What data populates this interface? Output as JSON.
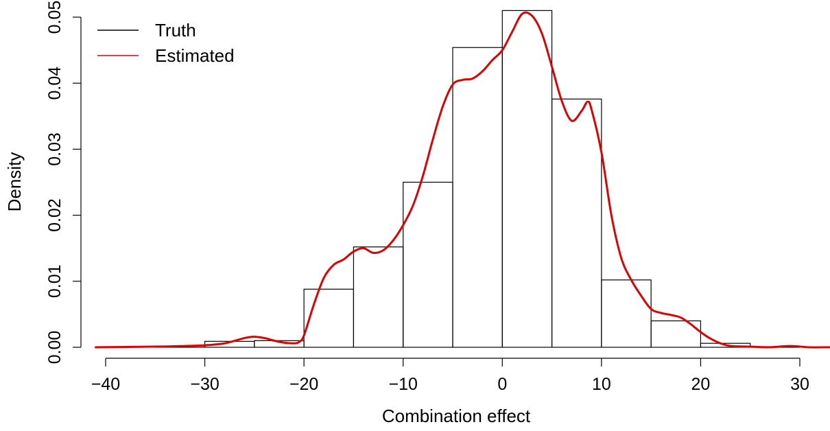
{
  "chart_data": {
    "type": "histogram",
    "title": "",
    "xlabel": "Combination effect",
    "ylabel": "Density",
    "xlim": [
      -41,
      33
    ],
    "ylim": [
      0,
      0.05
    ],
    "x_ticks": [
      -40,
      -30,
      -20,
      -10,
      0,
      10,
      20,
      30
    ],
    "x_tick_labels": [
      "−40",
      "−30",
      "−20",
      "−10",
      "0",
      "10",
      "20",
      "30"
    ],
    "y_ticks": [
      0,
      0.01,
      0.02,
      0.03,
      0.04,
      0.05
    ],
    "y_tick_labels": [
      "0.00",
      "0.01",
      "0.02",
      "0.03",
      "0.04",
      "0.05"
    ],
    "grid": false,
    "legend": {
      "placement": "top-left",
      "entries": [
        {
          "label": "Truth",
          "color": "#000000"
        },
        {
          "label": "Estimated",
          "color": "#e00000"
        }
      ]
    },
    "histogram": {
      "name": "Truth",
      "color": "#000000",
      "bins": [
        {
          "x0": -35,
          "x1": -30,
          "density": 0.0002
        },
        {
          "x0": -30,
          "x1": -25,
          "density": 0.0009
        },
        {
          "x0": -25,
          "x1": -20,
          "density": 0.001
        },
        {
          "x0": -20,
          "x1": -15,
          "density": 0.0088
        },
        {
          "x0": -15,
          "x1": -10,
          "density": 0.0152
        },
        {
          "x0": -10,
          "x1": -5,
          "density": 0.025
        },
        {
          "x0": -5,
          "x1": 0,
          "density": 0.0454
        },
        {
          "x0": 0,
          "x1": 5,
          "density": 0.051
        },
        {
          "x0": 5,
          "x1": 10,
          "density": 0.0376
        },
        {
          "x0": 10,
          "x1": 15,
          "density": 0.0102
        },
        {
          "x0": 15,
          "x1": 20,
          "density": 0.004
        },
        {
          "x0": 20,
          "x1": 25,
          "density": 0.0006
        },
        {
          "x0": 25,
          "x1": 30,
          "density": 0.0001
        }
      ]
    },
    "density_curve": {
      "name": "Estimated",
      "color": "#e00000",
      "x": [
        -41,
        -35,
        -32,
        -30,
        -28,
        -26,
        -25,
        -24,
        -23,
        -22,
        -21,
        -20.5,
        -20,
        -19,
        -18,
        -17,
        -16,
        -15,
        -14,
        -13,
        -12,
        -11,
        -10,
        -9,
        -8,
        -7,
        -6,
        -5,
        -4,
        -3,
        -2,
        -1,
        0,
        1,
        2,
        3,
        4,
        5,
        6,
        7,
        8,
        8.6,
        9,
        10,
        11,
        12,
        13,
        14,
        15,
        16,
        17,
        18,
        19,
        20,
        21,
        22,
        23,
        25,
        27,
        29,
        31,
        33
      ],
      "y": [
        0,
        0.0001,
        0.0002,
        0.0003,
        0.0006,
        0.0014,
        0.0016,
        0.0014,
        0.001,
        0.0007,
        0.0006,
        0.0008,
        0.0018,
        0.0065,
        0.0105,
        0.0125,
        0.0133,
        0.0145,
        0.015,
        0.0143,
        0.0147,
        0.0162,
        0.0185,
        0.0215,
        0.026,
        0.0315,
        0.0365,
        0.0398,
        0.0405,
        0.0407,
        0.0418,
        0.0435,
        0.045,
        0.0478,
        0.0505,
        0.0502,
        0.0475,
        0.0425,
        0.0373,
        0.0343,
        0.0358,
        0.0372,
        0.036,
        0.0295,
        0.02,
        0.0135,
        0.0102,
        0.0078,
        0.0058,
        0.0052,
        0.0049,
        0.0045,
        0.0035,
        0.0023,
        0.0013,
        0.0006,
        0.0002,
        0.0001,
        0.0,
        0.0002,
        0.0,
        0
      ]
    }
  }
}
